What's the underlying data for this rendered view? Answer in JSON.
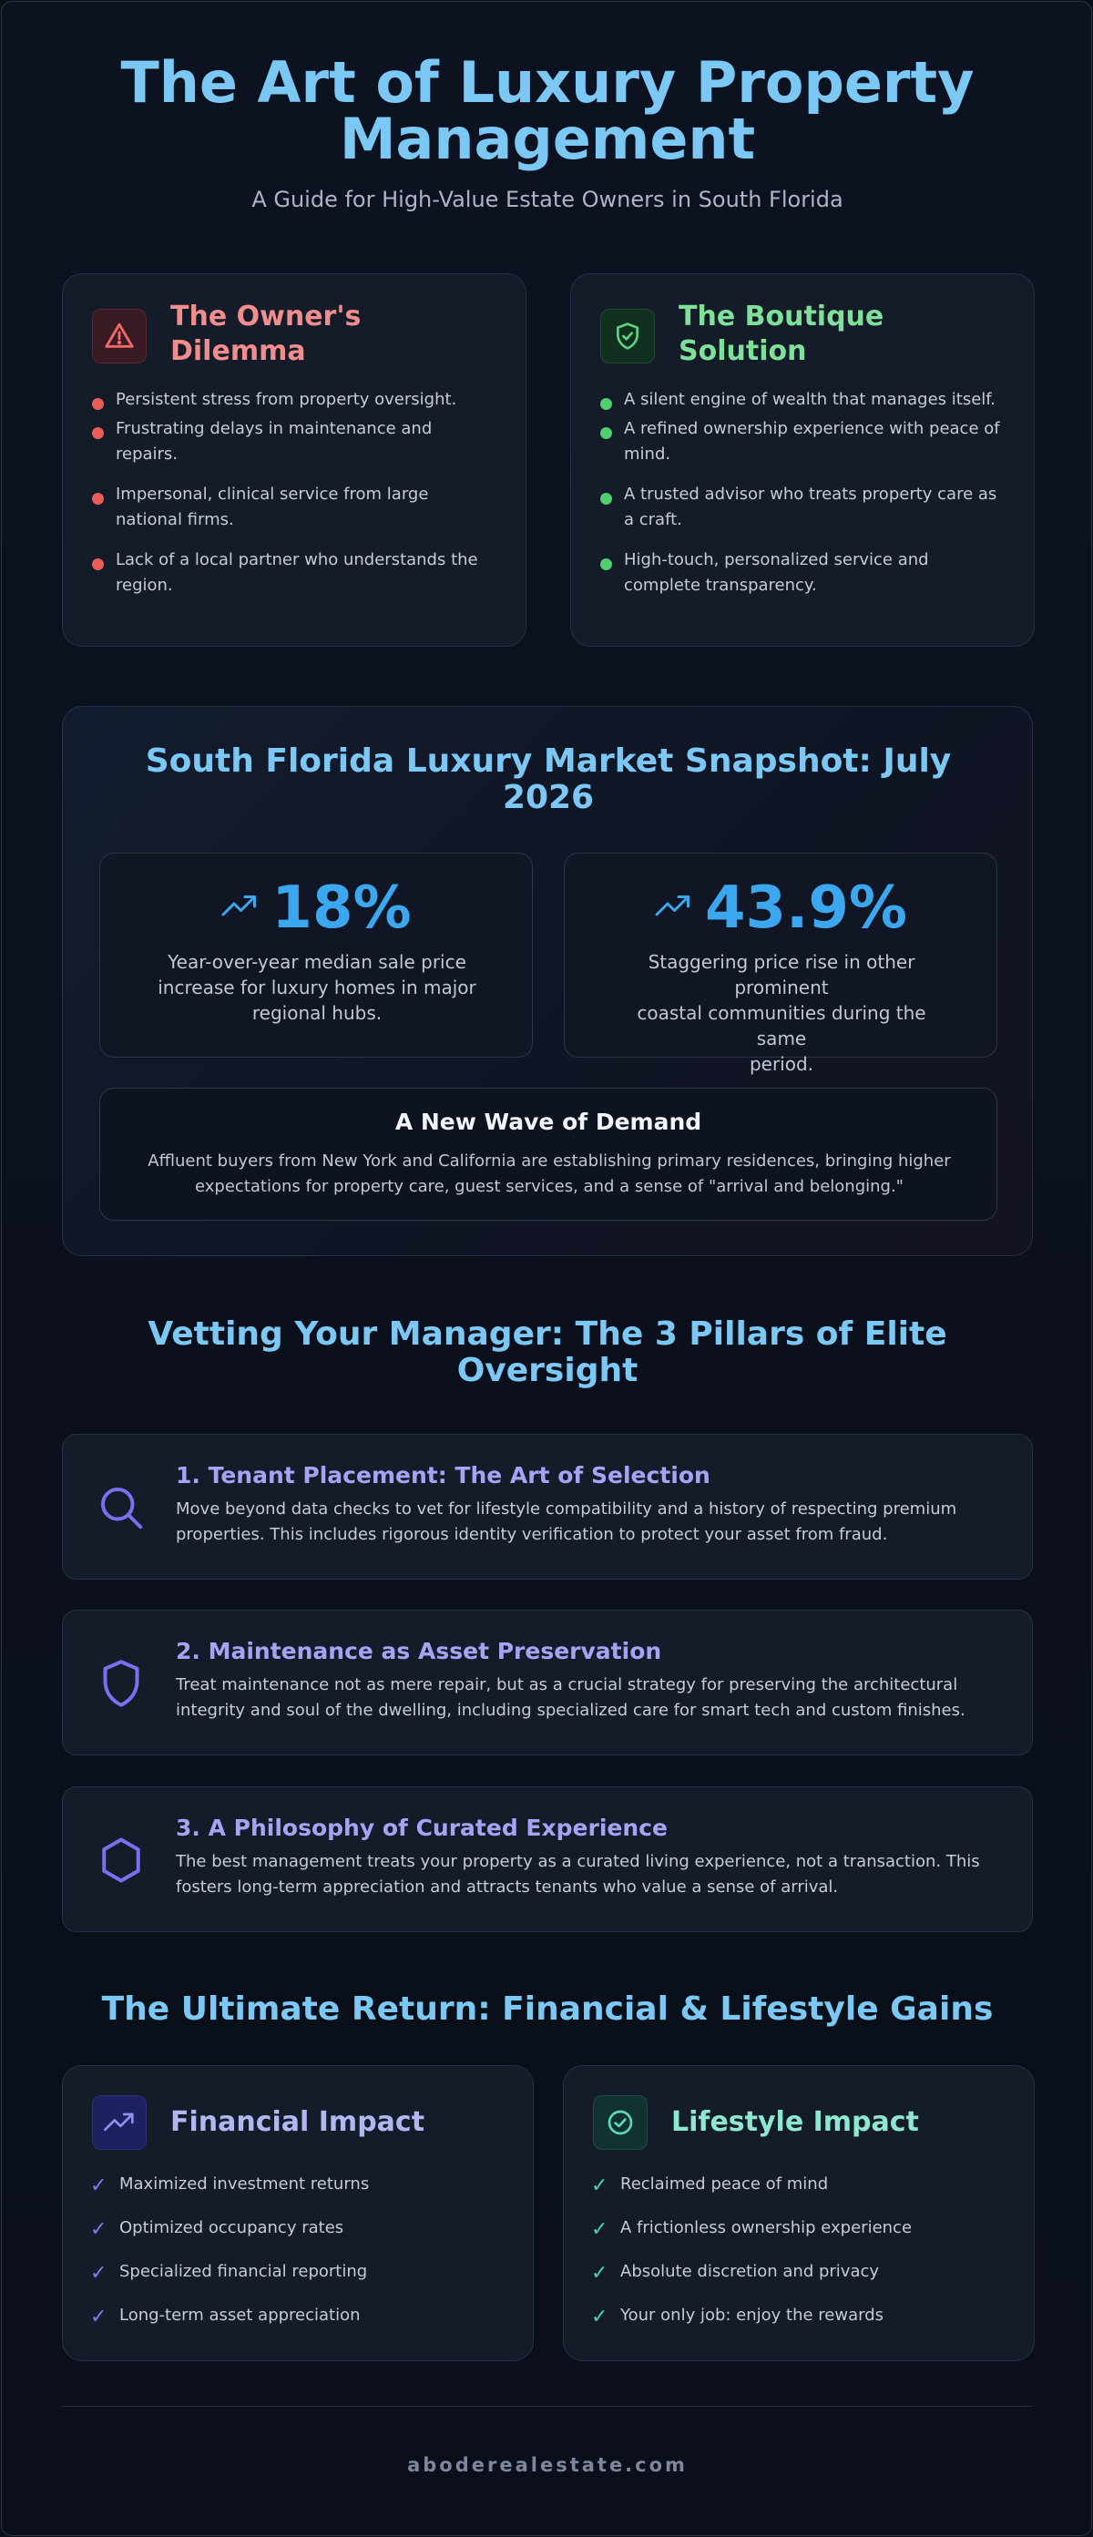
{
  "header": {
    "title_line1": "The Art of Luxury Property",
    "title_line2": "Management",
    "subtitle": "A Guide for High-Value Estate Owners in South Florida"
  },
  "dilemma": {
    "title_line1": "The Owner's",
    "title_line2": "Dilemma",
    "icon": "warning-triangle-icon",
    "accent": "#f08d8d",
    "items": [
      {
        "line1": "Persistent stress from property oversight.",
        "line2": ""
      },
      {
        "line1": "Frustrating delays in maintenance and",
        "line2": "repairs."
      },
      {
        "line1": "Impersonal, clinical service from large",
        "line2": "national firms."
      },
      {
        "line1": "Lack of a local partner who understands the",
        "line2": "region."
      }
    ]
  },
  "solution": {
    "title_line1": "The Boutique",
    "title_line2": "Solution",
    "icon": "shield-check-icon",
    "accent": "#7fe09a",
    "items": [
      {
        "line1": "A silent engine of wealth that manages itself.",
        "line2": ""
      },
      {
        "line1": "A refined ownership experience with peace of",
        "line2": "mind."
      },
      {
        "line1": "A trusted advisor who treats property care as",
        "line2": "a craft."
      },
      {
        "line1": "High-touch, personalized service and",
        "line2": "complete transparency."
      }
    ]
  },
  "snapshot": {
    "title_line1": "South Florida Luxury Market Snapshot: July",
    "title_line2": "2026",
    "stats": [
      {
        "value": "18%",
        "icon": "trending-up-icon",
        "desc_line1": "Year-over-year median sale price",
        "desc_line2": "increase for luxury homes in major",
        "desc_line3": "regional hubs."
      },
      {
        "value": "43.9%",
        "icon": "trending-up-icon",
        "desc_line1": "Staggering price rise in other prominent",
        "desc_line2": "coastal communities during the same",
        "desc_line3": "period."
      }
    ],
    "demand_title": "A New Wave of Demand",
    "demand_line1": "Affluent buyers from New York and California are establishing primary residences, bringing higher",
    "demand_line2": "expectations for property care, guest services, and a sense of \"arrival and belonging.\""
  },
  "pillars": {
    "title_line1": "Vetting Your Manager: The 3 Pillars of Elite",
    "title_line2": "Oversight",
    "items": [
      {
        "title": "1. Tenant Placement: The Art of Selection",
        "icon": "search-icon",
        "line1": "Move beyond data checks to vet for lifestyle compatibility and a history of respecting premium",
        "line2": "properties. This includes rigorous identity verification to protect your asset from fraud."
      },
      {
        "title": "2. Maintenance as Asset Preservation",
        "icon": "shield-icon",
        "line1": "Treat maintenance not as mere repair, but as a crucial strategy for preserving the architectural",
        "line2": "integrity and soul of the dwelling, including specialized care for smart tech and custom finishes."
      },
      {
        "title": "3. A Philosophy of Curated Experience",
        "icon": "hexagon-icon",
        "line1": "The best management treats your property as a curated living experience, not a transaction. This",
        "line2": "fosters long-term appreciation and attracts tenants who value a sense of arrival."
      }
    ]
  },
  "returns": {
    "title": "The Ultimate Return: Financial & Lifestyle Gains",
    "financial": {
      "title": "Financial Impact",
      "icon": "trending-up-icon",
      "accent": "#b4b6f2",
      "items": [
        "Maximized investment returns",
        "Optimized occupancy rates",
        "Specialized financial reporting",
        "Long-term asset appreciation"
      ]
    },
    "lifestyle": {
      "title": "Lifestyle Impact",
      "icon": "check-circle-icon",
      "accent": "#8de8cf",
      "items": [
        "Reclaimed peace of mind",
        "A frictionless ownership experience",
        "Absolute discretion and privacy",
        "Your only job: enjoy the rewards"
      ]
    }
  },
  "footer": {
    "site": "aboderealestate.com"
  }
}
